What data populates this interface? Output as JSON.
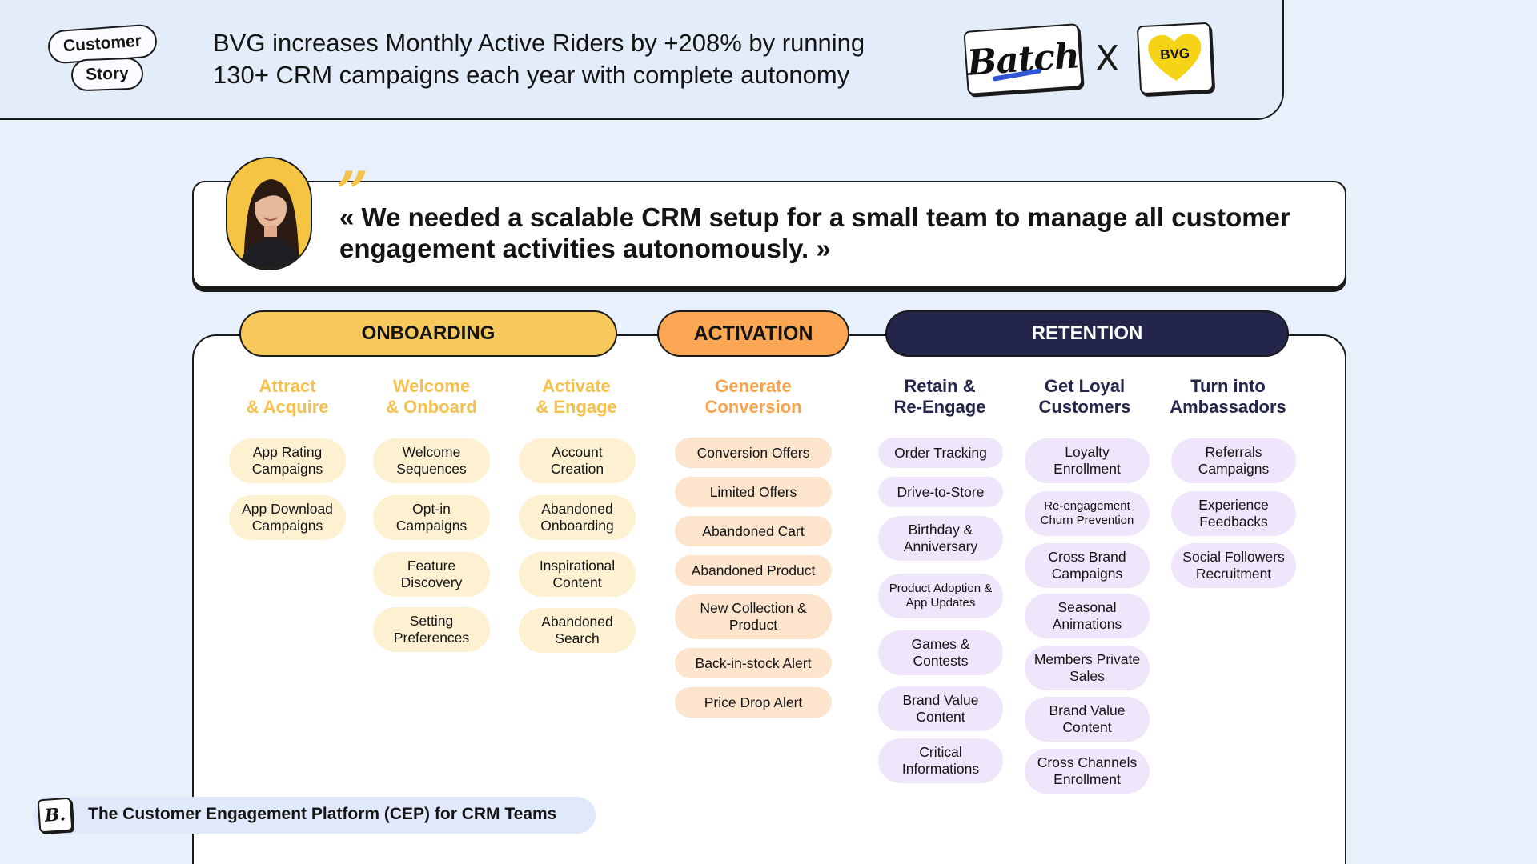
{
  "header": {
    "tag_customer": "Customer",
    "tag_story": "Story",
    "headline_line1": "BVG increases Monthly Active Riders by +208% by running",
    "headline_line2": "130+ CRM campaigns each year with complete autonomy",
    "logo_left": "Batch",
    "times": "X",
    "logo_right": "BVG"
  },
  "quote": {
    "text": "« We needed a scalable CRM setup for a small team to manage all customer engagement activities autonomously. »",
    "marks": "”"
  },
  "phases": {
    "onboarding": "ONBOARDING",
    "activation": "ACTIVATION",
    "retention": "RETENTION"
  },
  "columns": [
    {
      "title1": "Attract",
      "title2": "& Acquire",
      "items": [
        "App Rating Campaigns",
        "App Download Campaigns"
      ]
    },
    {
      "title1": "Welcome",
      "title2": "& Onboard",
      "items": [
        "Welcome Sequences",
        "Opt-in Campaigns",
        "Feature Discovery",
        "Setting Preferences"
      ]
    },
    {
      "title1": "Activate",
      "title2": "& Engage",
      "items": [
        "Account Creation",
        "Abandoned Onboarding",
        "Inspirational Content",
        "Abandoned Search"
      ]
    },
    {
      "title1": "Generate",
      "title2": "Conversion",
      "items": [
        "Conversion Offers",
        "Limited Offers",
        "Abandoned Cart",
        "Abandoned Product",
        "New Collection & Product",
        "Back-in-stock Alert",
        "Price Drop Alert"
      ]
    },
    {
      "title1": "Retain &",
      "title2": "Re-Engage",
      "items": [
        "Order Tracking",
        "Drive-to-Store",
        "Birthday & Anniversary",
        "Product Adoption & App Updates",
        "Games & Contests",
        "Brand Value Content",
        "Critical Informations"
      ]
    },
    {
      "title1": "Get Loyal",
      "title2": "Customers",
      "items": [
        "Loyalty Enrollment",
        "Re-engagement Churn Prevention",
        "Cross Brand Campaigns",
        "Seasonal Animations",
        "Members Private Sales",
        "Brand Value Content",
        "Cross Channels Enrollment"
      ]
    },
    {
      "title1": "Turn into",
      "title2": "Ambassadors",
      "items": [
        "Referrals Campaigns",
        "Experience Feedbacks",
        "Social Followers Recruitment"
      ]
    }
  ],
  "footer": {
    "logo": "B.",
    "text": "The Customer Engagement Platform (CEP) for CRM Teams"
  },
  "colors": {
    "onboarding": "#f7c95a",
    "activation": "#fba653",
    "retention": "#23254a",
    "background": "#e8f0fb"
  }
}
